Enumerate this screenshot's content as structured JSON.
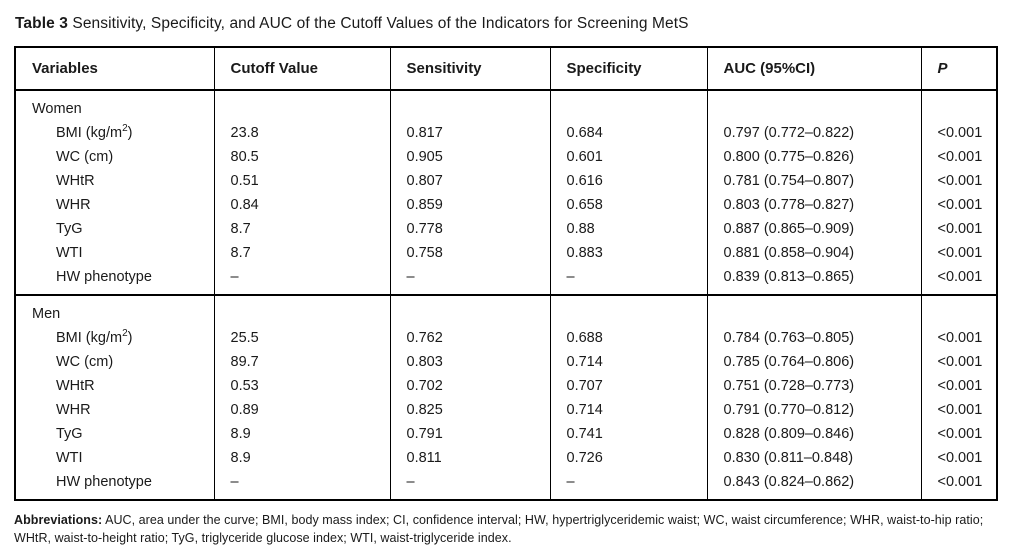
{
  "title": {
    "label": "Table 3",
    "text": "Sensitivity, Specificity, and AUC of the Cutoff Values of the Indicators for Screening MetS"
  },
  "table": {
    "headers": [
      "Variables",
      "Cutoff Value",
      "Sensitivity",
      "Specificity",
      "AUC (95%CI)",
      "P"
    ],
    "sections": [
      {
        "label": "Women",
        "rows": [
          {
            "variable": "BMI (kg/m",
            "variable_sup": "2",
            "variable_post": ")",
            "cutoff": "23.8",
            "sensitivity": "0.817",
            "specificity": "0.684",
            "auc": "0.797 (0.772–0.822)",
            "p": "<0.001"
          },
          {
            "variable": "WC (cm)",
            "cutoff": "80.5",
            "sensitivity": "0.905",
            "specificity": "0.601",
            "auc": "0.800 (0.775–0.826)",
            "p": "<0.001"
          },
          {
            "variable": "WHtR",
            "cutoff": "0.51",
            "sensitivity": "0.807",
            "specificity": "0.616",
            "auc": "0.781 (0.754–0.807)",
            "p": "<0.001"
          },
          {
            "variable": "WHR",
            "cutoff": "0.84",
            "sensitivity": "0.859",
            "specificity": "0.658",
            "auc": "0.803 (0.778–0.827)",
            "p": "<0.001"
          },
          {
            "variable": "TyG",
            "cutoff": "8.7",
            "sensitivity": "0.778",
            "specificity": "0.88",
            "auc": "0.887 (0.865–0.909)",
            "p": "<0.001"
          },
          {
            "variable": "WTI",
            "cutoff": "8.7",
            "sensitivity": "0.758",
            "specificity": "0.883",
            "auc": "0.881 (0.858–0.904)",
            "p": "<0.001"
          },
          {
            "variable": "HW phenotype",
            "cutoff": "–",
            "sensitivity": "–",
            "specificity": "–",
            "auc": "0.839 (0.813–0.865)",
            "p": "<0.001"
          }
        ]
      },
      {
        "label": "Men",
        "rows": [
          {
            "variable": "BMI (kg/m",
            "variable_sup": "2",
            "variable_post": ")",
            "cutoff": "25.5",
            "sensitivity": "0.762",
            "specificity": "0.688",
            "auc": "0.784 (0.763–0.805)",
            "p": "<0.001"
          },
          {
            "variable": "WC (cm)",
            "cutoff": "89.7",
            "sensitivity": "0.803",
            "specificity": "0.714",
            "auc": "0.785 (0.764–0.806)",
            "p": "<0.001"
          },
          {
            "variable": "WHtR",
            "cutoff": "0.53",
            "sensitivity": "0.702",
            "specificity": "0.707",
            "auc": "0.751 (0.728–0.773)",
            "p": "<0.001"
          },
          {
            "variable": "WHR",
            "cutoff": "0.89",
            "sensitivity": "0.825",
            "specificity": "0.714",
            "auc": "0.791 (0.770–0.812)",
            "p": "<0.001"
          },
          {
            "variable": "TyG",
            "cutoff": "8.9",
            "sensitivity": "0.791",
            "specificity": "0.741",
            "auc": "0.828 (0.809–0.846)",
            "p": "<0.001"
          },
          {
            "variable": "WTI",
            "cutoff": "8.9",
            "sensitivity": "0.811",
            "specificity": "0.726",
            "auc": "0.830 (0.811–0.848)",
            "p": "<0.001"
          },
          {
            "variable": "HW phenotype",
            "cutoff": "–",
            "sensitivity": "–",
            "specificity": "–",
            "auc": "0.843 (0.824–0.862)",
            "p": "<0.001"
          }
        ]
      }
    ]
  },
  "footer": {
    "label": "Abbreviations:",
    "text": "AUC, area under the curve; BMI, body mass index; CI, confidence interval; HW, hypertriglyceridemic waist; WC, waist circumference; WHR, waist-to-hip ratio; WHtR, waist-to-height ratio; TyG, triglyceride glucose index; WTI, waist-triglyceride index."
  },
  "colors": {
    "text": "#1a1a1a",
    "border": "#000000",
    "background": "#ffffff"
  }
}
